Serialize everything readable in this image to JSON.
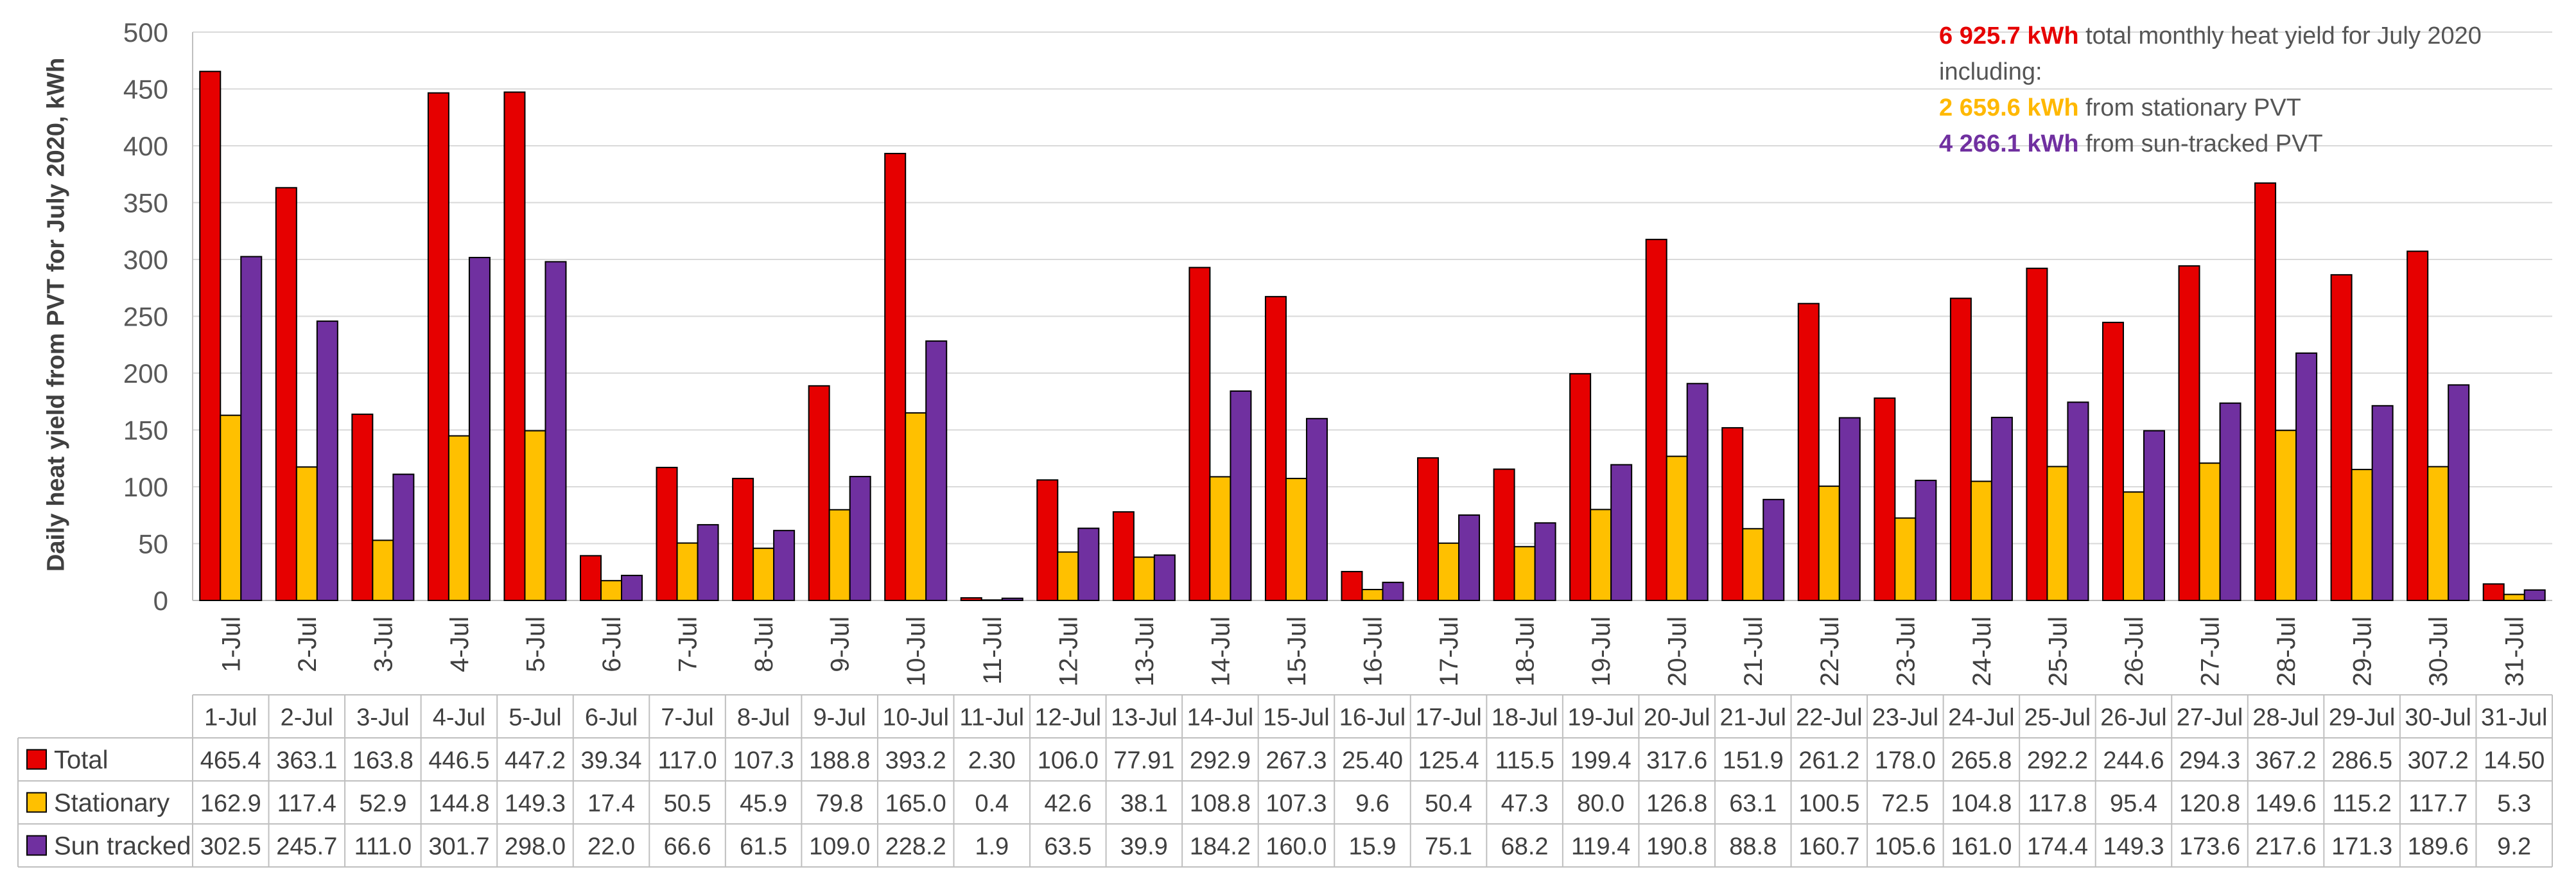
{
  "annotation": {
    "total_value": "6 925.7 kWh",
    "total_text": " total monthly heat yield for July 2020",
    "including": "including:",
    "stationary_value": "2 659.6 kWh",
    "stationary_text": " from stationary PVT",
    "tracked_value": "4 266.1 kWh",
    "tracked_text": " from sun-tracked PVT"
  },
  "colors": {
    "total": "#E60000",
    "stationary": "#FFC000",
    "tracked": "#7030A0",
    "total_text": "#E60000",
    "stationary_text": "#FFB800",
    "tracked_text": "#7030A0"
  },
  "chart_data": {
    "type": "bar",
    "title": "",
    "xlabel": "",
    "ylabel": "Daily heat yield from PVT for July 2020, kWh",
    "ylim": [
      0,
      500
    ],
    "yticks": [
      0,
      50,
      100,
      150,
      200,
      250,
      300,
      350,
      400,
      450,
      500
    ],
    "grid": true,
    "categories": [
      "1-Jul",
      "2-Jul",
      "3-Jul",
      "4-Jul",
      "5-Jul",
      "6-Jul",
      "7-Jul",
      "8-Jul",
      "9-Jul",
      "10-Jul",
      "11-Jul",
      "12-Jul",
      "13-Jul",
      "14-Jul",
      "15-Jul",
      "16-Jul",
      "17-Jul",
      "18-Jul",
      "19-Jul",
      "20-Jul",
      "21-Jul",
      "22-Jul",
      "23-Jul",
      "24-Jul",
      "25-Jul",
      "26-Jul",
      "27-Jul",
      "28-Jul",
      "29-Jul",
      "30-Jul",
      "31-Jul"
    ],
    "series": [
      {
        "name": "Total",
        "color": "#E60000",
        "values": [
          465.4,
          363.1,
          163.8,
          446.5,
          447.2,
          39.34,
          117.0,
          107.3,
          188.8,
          393.2,
          2.3,
          106.0,
          77.91,
          292.9,
          267.3,
          25.4,
          125.4,
          115.5,
          199.4,
          317.6,
          151.9,
          261.2,
          178.0,
          265.8,
          292.2,
          244.6,
          294.3,
          367.2,
          286.5,
          307.2,
          14.5
        ],
        "labels": [
          "465.4",
          "363.1",
          "163.8",
          "446.5",
          "447.2",
          "39.34",
          "117.0",
          "107.3",
          "188.8",
          "393.2",
          "2.30",
          "106.0",
          "77.91",
          "292.9",
          "267.3",
          "25.40",
          "125.4",
          "115.5",
          "199.4",
          "317.6",
          "151.9",
          "261.2",
          "178.0",
          "265.8",
          "292.2",
          "244.6",
          "294.3",
          "367.2",
          "286.5",
          "307.2",
          "14.50"
        ]
      },
      {
        "name": "Stationary",
        "color": "#FFC000",
        "values": [
          162.9,
          117.4,
          52.9,
          144.8,
          149.3,
          17.4,
          50.5,
          45.9,
          79.8,
          165.0,
          0.4,
          42.6,
          38.1,
          108.8,
          107.3,
          9.6,
          50.4,
          47.3,
          80.0,
          126.8,
          63.1,
          100.5,
          72.5,
          104.8,
          117.8,
          95.4,
          120.8,
          149.6,
          115.2,
          117.7,
          5.3
        ],
        "labels": [
          "162.9",
          "117.4",
          "52.9",
          "144.8",
          "149.3",
          "17.4",
          "50.5",
          "45.9",
          "79.8",
          "165.0",
          "0.4",
          "42.6",
          "38.1",
          "108.8",
          "107.3",
          "9.6",
          "50.4",
          "47.3",
          "80.0",
          "126.8",
          "63.1",
          "100.5",
          "72.5",
          "104.8",
          "117.8",
          "95.4",
          "120.8",
          "149.6",
          "115.2",
          "117.7",
          "5.3"
        ]
      },
      {
        "name": "Sun tracked",
        "color": "#7030A0",
        "values": [
          302.5,
          245.7,
          111.0,
          301.7,
          298.0,
          22.0,
          66.6,
          61.5,
          109.0,
          228.2,
          1.9,
          63.5,
          39.9,
          184.2,
          160.0,
          15.9,
          75.1,
          68.2,
          119.4,
          190.8,
          88.8,
          160.7,
          105.6,
          161.0,
          174.4,
          149.3,
          173.6,
          217.6,
          171.3,
          189.6,
          9.2
        ],
        "labels": [
          "302.5",
          "245.7",
          "111.0",
          "301.7",
          "298.0",
          "22.0",
          "66.6",
          "61.5",
          "109.0",
          "228.2",
          "1.9",
          "63.5",
          "39.9",
          "184.2",
          "160.0",
          "15.9",
          "75.1",
          "68.2",
          "119.4",
          "190.8",
          "88.8",
          "160.7",
          "105.6",
          "161.0",
          "174.4",
          "149.3",
          "173.6",
          "217.6",
          "171.3",
          "189.6",
          "9.2"
        ]
      }
    ],
    "legend": "data-table"
  }
}
